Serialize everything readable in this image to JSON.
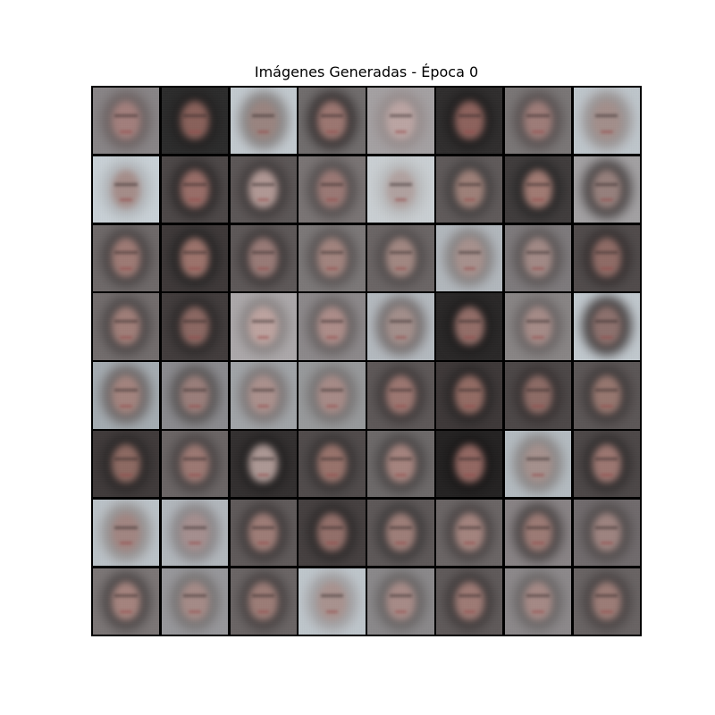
{
  "title": "Imágenes Generadas - Época 0",
  "grid": {
    "rows": 8,
    "cols": 8,
    "tiles": [
      {
        "bg": "#8a8688",
        "face": "#a57f7c",
        "hair": "#6e6464"
      },
      {
        "bg": "#262626",
        "face": "#8a5f58",
        "hair": "#1e1c1c"
      },
      {
        "bg": "#c8d0d6",
        "face": "#9c8580",
        "hair": "#8e8a8a"
      },
      {
        "bg": "#706c6c",
        "face": "#9e7670",
        "hair": "#3a3434"
      },
      {
        "bg": "#a8a4a6",
        "face": "#c0a8a6",
        "hair": "#9a9090"
      },
      {
        "bg": "#2a2828",
        "face": "#8e605a",
        "hair": "#1c1a1a"
      },
      {
        "bg": "#7a7676",
        "face": "#a07c78",
        "hair": "#5a5252"
      },
      {
        "bg": "#c4ccd2",
        "face": "#a6908c",
        "hair": "#9e9898"
      },
      {
        "bg": "#cfd8de",
        "face": "#a88e8a",
        "hair": "#b8bcc0"
      },
      {
        "bg": "#4a4444",
        "face": "#9a6c66",
        "hair": "#2c2828"
      },
      {
        "bg": "#5a5454",
        "face": "#b49a96",
        "hair": "#403a3a"
      },
      {
        "bg": "#7a7474",
        "face": "#9c7874",
        "hair": "#565050"
      },
      {
        "bg": "#d0d6da",
        "face": "#b4a4a2",
        "hair": "#c0c2c4"
      },
      {
        "bg": "#5e5858",
        "face": "#a08078",
        "hair": "#444040"
      },
      {
        "bg": "#3c3838",
        "face": "#a37a72",
        "hair": "#262424"
      },
      {
        "bg": "#a6a4a6",
        "face": "#98807c",
        "hair": "#4e4848"
      },
      {
        "bg": "#6e6868",
        "face": "#a07a74",
        "hair": "#4a4444"
      },
      {
        "bg": "#3a3434",
        "face": "#9e726a",
        "hair": "#222020"
      },
      {
        "bg": "#5c5656",
        "face": "#9a7a76",
        "hair": "#3e3838"
      },
      {
        "bg": "#7c7878",
        "face": "#a4847e",
        "hair": "#5a5454"
      },
      {
        "bg": "#6a6464",
        "face": "#a48882",
        "hair": "#524c4c"
      },
      {
        "bg": "#b6bcc2",
        "face": "#aa928e",
        "hair": "#8a8686"
      },
      {
        "bg": "#7e7a7c",
        "face": "#a48a86",
        "hair": "#5c5656"
      },
      {
        "bg": "#4e4848",
        "face": "#906a64",
        "hair": "#342e2e"
      },
      {
        "bg": "#726c6c",
        "face": "#a27e78",
        "hair": "#4e4848"
      },
      {
        "bg": "#3e3838",
        "face": "#8c6660",
        "hair": "#2a2626"
      },
      {
        "bg": "#b0acae",
        "face": "#c2a6a2",
        "hair": "#8e8888"
      },
      {
        "bg": "#8e8a8c",
        "face": "#b08e8a",
        "hair": "#6a6464"
      },
      {
        "bg": "#b8bec4",
        "face": "#a6908c",
        "hair": "#7a7474"
      },
      {
        "bg": "#242222",
        "face": "#946c66",
        "hair": "#1a1818"
      },
      {
        "bg": "#8a8686",
        "face": "#a88c88",
        "hair": "#6c6666"
      },
      {
        "bg": "#c6ced4",
        "face": "#8e706c",
        "hair": "#4a4444"
      },
      {
        "bg": "#a8b0b6",
        "face": "#a6847e",
        "hair": "#706a6a"
      },
      {
        "bg": "#8c8c90",
        "face": "#9c7e7a",
        "hair": "#5a5656"
      },
      {
        "bg": "#a4a8ac",
        "face": "#ae928e",
        "hair": "#807a7a"
      },
      {
        "bg": "#9a9c9e",
        "face": "#aa8c88",
        "hair": "#7a7676"
      },
      {
        "bg": "#5c5656",
        "face": "#9e7670",
        "hair": "#403a3a"
      },
      {
        "bg": "#3a3434",
        "face": "#946a62",
        "hair": "#262222"
      },
      {
        "bg": "#4a4444",
        "face": "#8e6a64",
        "hair": "#363030"
      },
      {
        "bg": "#5a5454",
        "face": "#98766e",
        "hair": "#403a3a"
      },
      {
        "bg": "#3c3636",
        "face": "#8e6860",
        "hair": "#282424"
      },
      {
        "bg": "#6a6464",
        "face": "#9e7872",
        "hair": "#4a4444"
      },
      {
        "bg": "#2e2a2a",
        "face": "#b09a96",
        "hair": "#1e1c1c"
      },
      {
        "bg": "#4e4848",
        "face": "#9a726a",
        "hair": "#363232"
      },
      {
        "bg": "#6c6868",
        "face": "#a8847e",
        "hair": "#4a4646"
      },
      {
        "bg": "#1e1c1c",
        "face": "#946660",
        "hair": "#141212"
      },
      {
        "bg": "#b8c0c6",
        "face": "#a8928e",
        "hair": "#8e8a8a"
      },
      {
        "bg": "#4a4444",
        "face": "#9e7670",
        "hair": "#302c2c"
      },
      {
        "bg": "#c0c8ce",
        "face": "#a48682",
        "hair": "#9a9696"
      },
      {
        "bg": "#b6bcc2",
        "face": "#a89090",
        "hair": "#8e8a8c"
      },
      {
        "bg": "#5e5858",
        "face": "#a07c76",
        "hair": "#403a3a"
      },
      {
        "bg": "#423c3c",
        "face": "#946e68",
        "hair": "#2c2828"
      },
      {
        "bg": "#5c5656",
        "face": "#a07e78",
        "hair": "#3e3a3a"
      },
      {
        "bg": "#6a6464",
        "face": "#a6847e",
        "hair": "#4a4444"
      },
      {
        "bg": "#8a8486",
        "face": "#9e7a74",
        "hair": "#4c4646"
      },
      {
        "bg": "#706a6c",
        "face": "#a08480",
        "hair": "#524c4c"
      },
      {
        "bg": "#7c7676",
        "face": "#a8847e",
        "hair": "#4e4848"
      },
      {
        "bg": "#9a9a9e",
        "face": "#a88c88",
        "hair": "#7a7676"
      },
      {
        "bg": "#6a6464",
        "face": "#9e7c76",
        "hair": "#484242"
      },
      {
        "bg": "#c4ccd2",
        "face": "#ac9490",
        "hair": "#a6a4a6"
      },
      {
        "bg": "#8c8a8c",
        "face": "#aa8c88",
        "hair": "#6a6666"
      },
      {
        "bg": "#5e5858",
        "face": "#a07a74",
        "hair": "#403a3a"
      },
      {
        "bg": "#8e8a8c",
        "face": "#a88a86",
        "hair": "#6c6868"
      },
      {
        "bg": "#686262",
        "face": "#9e7c76",
        "hair": "#4a4444"
      }
    ]
  }
}
